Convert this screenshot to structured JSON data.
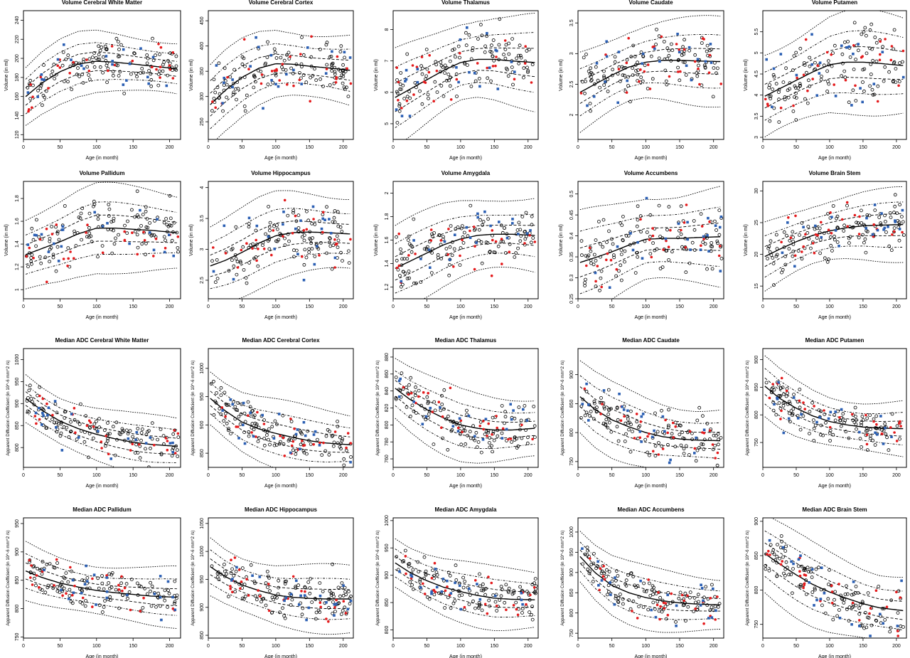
{
  "figure": {
    "background": "#ffffff",
    "colors": {
      "fit": "#000000",
      "healthy": "#000000",
      "red_points": "#e41a1c",
      "blue_points": "#2b5fb3"
    }
  },
  "chart_data": [
    {
      "type": "scatter",
      "title": "Volume Cerebral White Matter",
      "xlabel": "Age (in month)",
      "ylabel": "Volume (in ml)",
      "xlim": [
        0,
        215
      ],
      "ylim": [
        115,
        250
      ],
      "xticks": [
        0,
        50,
        100,
        150,
        200
      ],
      "yticks": [
        120,
        140,
        160,
        180,
        200,
        220,
        240
      ],
      "fit": {
        "x": [
          0,
          25,
          50,
          75,
          100,
          125,
          150,
          175,
          210
        ],
        "y": [
          158,
          174,
          186,
          194,
          197,
          196,
          194,
          192,
          189
        ]
      },
      "spread": [
        30,
        18,
        9,
        -9,
        -18,
        -30
      ]
    },
    {
      "type": "scatter",
      "title": "Volume Cerebral Cortex",
      "xlabel": "Age (in month)",
      "ylabel": "Volume (in ml)",
      "xlim": [
        0,
        215
      ],
      "ylim": [
        215,
        470
      ],
      "xticks": [
        0,
        50,
        100,
        150,
        200
      ],
      "yticks": [
        250,
        300,
        350,
        400,
        450
      ],
      "fit": {
        "x": [
          0,
          25,
          50,
          75,
          100,
          125,
          150,
          175,
          210
        ],
        "y": [
          280,
          312,
          338,
          356,
          365,
          364,
          360,
          357,
          352
        ]
      },
      "spread": [
        70,
        42,
        20,
        -20,
        -42,
        -70
      ]
    },
    {
      "type": "scatter",
      "title": "Volume Thalamus",
      "xlabel": "Age (in month)",
      "ylabel": "Volume (in ml)",
      "xlim": [
        0,
        215
      ],
      "ylim": [
        4.5,
        8.6
      ],
      "xticks": [
        0,
        50,
        100,
        150,
        200
      ],
      "yticks": [
        5,
        6,
        7,
        8
      ],
      "fit": {
        "x": [
          0,
          25,
          50,
          75,
          100,
          125,
          150,
          175,
          210
        ],
        "y": [
          5.8,
          6.1,
          6.4,
          6.7,
          6.95,
          7.05,
          7.05,
          7.0,
          6.95
        ]
      },
      "spread": [
        1.4,
        0.85,
        0.4,
        -0.4,
        -0.85,
        -1.4
      ]
    },
    {
      "type": "scatter",
      "title": "Volume Caudate",
      "xlabel": "Age (in month)",
      "ylabel": "Volume (in ml)",
      "xlim": [
        0,
        215
      ],
      "ylim": [
        1.6,
        3.7
      ],
      "xticks": [
        0,
        50,
        100,
        150,
        200
      ],
      "yticks": [
        2.0,
        2.5,
        3.0,
        3.5
      ],
      "fit": {
        "x": [
          0,
          25,
          50,
          75,
          100,
          125,
          150,
          175,
          210
        ],
        "y": [
          2.35,
          2.5,
          2.65,
          2.78,
          2.86,
          2.89,
          2.89,
          2.88,
          2.87
        ]
      },
      "spread": [
        0.65,
        0.38,
        0.18,
        -0.18,
        -0.38,
        -0.65
      ]
    },
    {
      "type": "scatter",
      "title": "Volume Putamen",
      "xlabel": "Age (in month)",
      "ylabel": "Volume (in ml)",
      "xlim": [
        0,
        215
      ],
      "ylim": [
        2.95,
        6.0
      ],
      "xticks": [
        0,
        50,
        100,
        150,
        200
      ],
      "yticks": [
        3.0,
        3.5,
        4.0,
        4.5,
        5.0,
        5.5
      ],
      "fit": {
        "x": [
          0,
          25,
          50,
          75,
          100,
          125,
          150,
          175,
          210
        ],
        "y": [
          3.95,
          4.15,
          4.35,
          4.55,
          4.72,
          4.78,
          4.78,
          4.75,
          4.7
        ]
      },
      "spread": [
        1.1,
        0.65,
        0.32,
        -0.32,
        -0.65,
        -1.1
      ]
    },
    {
      "type": "scatter",
      "title": "Volume Pallidum",
      "xlabel": "Age (in month)",
      "ylabel": "Volume (in ml)",
      "xlim": [
        0,
        215
      ],
      "ylim": [
        0.92,
        1.95
      ],
      "xticks": [
        0,
        50,
        100,
        150,
        200
      ],
      "yticks": [
        1.0,
        1.2,
        1.4,
        1.6,
        1.8
      ],
      "fit": {
        "x": [
          0,
          25,
          50,
          75,
          100,
          125,
          150,
          175,
          210
        ],
        "y": [
          1.3,
          1.36,
          1.42,
          1.49,
          1.54,
          1.54,
          1.53,
          1.52,
          1.5
        ]
      },
      "spread": [
        0.35,
        0.2,
        0.1,
        -0.1,
        -0.2,
        -0.35
      ]
    },
    {
      "type": "scatter",
      "title": "Volume Hippocampus",
      "xlabel": "Age (in month)",
      "ylabel": "Volume (in ml)",
      "xlim": [
        0,
        215
      ],
      "ylim": [
        2.2,
        4.1
      ],
      "xticks": [
        0,
        50,
        100,
        150,
        200
      ],
      "yticks": [
        2.5,
        3.0,
        3.5,
        4.0
      ],
      "fit": {
        "x": [
          0,
          25,
          50,
          75,
          100,
          125,
          150,
          175,
          210
        ],
        "y": [
          2.72,
          2.82,
          2.95,
          3.1,
          3.22,
          3.27,
          3.28,
          3.27,
          3.25
        ]
      },
      "spread": [
        0.65,
        0.38,
        0.18,
        -0.18,
        -0.38,
        -0.65
      ]
    },
    {
      "type": "scatter",
      "title": "Volume Amygdala",
      "xlabel": "Age (in month)",
      "ylabel": "Volume (in ml)",
      "xlim": [
        0,
        215
      ],
      "ylim": [
        1.1,
        2.1
      ],
      "xticks": [
        0,
        50,
        100,
        150,
        200
      ],
      "yticks": [
        1.2,
        1.4,
        1.6,
        1.8,
        2.0
      ],
      "fit": {
        "x": [
          0,
          25,
          50,
          75,
          100,
          125,
          150,
          175,
          210
        ],
        "y": [
          1.35,
          1.42,
          1.49,
          1.56,
          1.61,
          1.64,
          1.65,
          1.65,
          1.64
        ]
      },
      "spread": [
        0.33,
        0.19,
        0.09,
        -0.09,
        -0.19,
        -0.33
      ]
    },
    {
      "type": "scatter",
      "title": "Volume Accumbens",
      "xlabel": "Age (in month)",
      "ylabel": "Volume (in ml)",
      "xlim": [
        0,
        215
      ],
      "ylim": [
        0.25,
        0.53
      ],
      "xticks": [
        0,
        50,
        100,
        150,
        200
      ],
      "yticks": [
        0.25,
        0.3,
        0.35,
        0.4,
        0.45,
        0.5
      ],
      "fit": {
        "x": [
          0,
          25,
          50,
          75,
          100,
          125,
          150,
          175,
          210
        ],
        "y": [
          0.335,
          0.348,
          0.362,
          0.378,
          0.392,
          0.394,
          0.394,
          0.396,
          0.398
        ]
      },
      "spread": [
        0.11,
        0.065,
        0.03,
        -0.03,
        -0.065,
        -0.11
      ]
    },
    {
      "type": "scatter",
      "title": "Volume Brain Stem",
      "xlabel": "Age (in month)",
      "ylabel": "Volume (in ml)",
      "xlim": [
        0,
        215
      ],
      "ylim": [
        13,
        31.5
      ],
      "xticks": [
        0,
        50,
        100,
        150,
        200
      ],
      "yticks": [
        15,
        20,
        25,
        30
      ],
      "fit": {
        "x": [
          0,
          25,
          50,
          75,
          100,
          125,
          150,
          175,
          210
        ],
        "y": [
          19.5,
          20.8,
          22.0,
          23.0,
          23.7,
          24.2,
          24.5,
          24.6,
          24.7
        ]
      },
      "spread": [
        5.2,
        3.1,
        1.5,
        -1.5,
        -3.1,
        -5.2
      ]
    },
    {
      "type": "scatter",
      "title": "Median ADC Cerebral White Matter",
      "xlabel": "Age (in month)",
      "ylabel": "Apparent Diffusion Coefficient (in 10^-6 mm^2 /s)",
      "xlim": [
        0,
        215
      ],
      "ylim": [
        755,
        1025
      ],
      "xticks": [
        0,
        50,
        100,
        150,
        200
      ],
      "yticks": [
        800,
        850,
        900,
        950,
        1000
      ],
      "fit": {
        "x": [
          0,
          25,
          50,
          75,
          100,
          125,
          150,
          175,
          210
        ],
        "y": [
          915,
          885,
          860,
          843,
          830,
          820,
          812,
          807,
          803
        ]
      },
      "spread": [
        60,
        35,
        17,
        -17,
        -35,
        -60
      ]
    },
    {
      "type": "scatter",
      "title": "Median ADC Cerebral Cortex",
      "xlabel": "Age (in month)",
      "ylabel": "Apparent Diffusion Coefficient (in 10^-6 mm^2 /s)",
      "xlim": [
        0,
        215
      ],
      "ylim": [
        825,
        1035
      ],
      "xticks": [
        0,
        50,
        100,
        150,
        200
      ],
      "yticks": [
        850,
        900,
        950,
        1000
      ],
      "fit": {
        "x": [
          0,
          25,
          50,
          75,
          100,
          125,
          150,
          175,
          210
        ],
        "y": [
          950,
          925,
          905,
          893,
          885,
          878,
          872,
          868,
          865
        ]
      },
      "spread": [
        55,
        32,
        15,
        -15,
        -32,
        -55
      ]
    },
    {
      "type": "scatter",
      "title": "Median ADC Thalamus",
      "xlabel": "Age (in month)",
      "ylabel": "Apparent Diffusion Coefficient (in 10^-6 mm^2 /s)",
      "xlim": [
        0,
        215
      ],
      "ylim": [
        750,
        890
      ],
      "xticks": [
        0,
        50,
        100,
        150,
        200
      ],
      "yticks": [
        760,
        780,
        800,
        820,
        840,
        860,
        880
      ],
      "fit": {
        "x": [
          0,
          25,
          50,
          75,
          100,
          125,
          150,
          175,
          210
        ],
        "y": [
          845,
          830,
          818,
          808,
          800,
          796,
          794,
          794,
          796
        ]
      },
      "spread": [
        38,
        22,
        10,
        -10,
        -22,
        -38
      ]
    },
    {
      "type": "scatter",
      "title": "Median ADC Caudate",
      "xlabel": "Age (in month)",
      "ylabel": "Apparent Diffusion Coefficient (in 10^-6 mm^2 /s)",
      "xlim": [
        0,
        215
      ],
      "ylim": [
        740,
        945
      ],
      "xticks": [
        0,
        50,
        100,
        150,
        200
      ],
      "yticks": [
        750,
        800,
        850,
        900
      ],
      "fit": {
        "x": [
          0,
          25,
          50,
          75,
          100,
          125,
          150,
          175,
          210
        ],
        "y": [
          865,
          840,
          822,
          810,
          800,
          793,
          789,
          787,
          786
        ]
      },
      "spread": [
        58,
        34,
        16,
        -16,
        -34,
        -58
      ]
    },
    {
      "type": "scatter",
      "title": "Median ADC Putamen",
      "xlabel": "Age (in month)",
      "ylabel": "Apparent Diffusion Coefficient (in 10^-6 mm^2 /s)",
      "xlim": [
        0,
        215
      ],
      "ylim": [
        705,
        920
      ],
      "xticks": [
        0,
        50,
        100,
        150,
        200
      ],
      "yticks": [
        750,
        800,
        850,
        900
      ],
      "fit": {
        "x": [
          0,
          25,
          50,
          75,
          100,
          125,
          150,
          175,
          210
        ],
        "y": [
          855,
          830,
          812,
          798,
          788,
          782,
          778,
          776,
          775
        ]
      },
      "spread": [
        48,
        28,
        13,
        -13,
        -28,
        -48
      ]
    },
    {
      "type": "scatter",
      "title": "Median ADC Pallidum",
      "xlabel": "Age (in month)",
      "ylabel": "Apparent Diffusion Coefficient (in 10^-6 mm^2 /s)",
      "xlim": [
        0,
        215
      ],
      "ylim": [
        748,
        960
      ],
      "xticks": [
        0,
        50,
        100,
        150,
        200
      ],
      "yticks": [
        750,
        800,
        850,
        900,
        950
      ],
      "fit": {
        "x": [
          0,
          25,
          50,
          75,
          100,
          125,
          150,
          175,
          210
        ],
        "y": [
          868,
          855,
          845,
          838,
          832,
          828,
          825,
          822,
          820
        ]
      },
      "spread": [
        48,
        28,
        13,
        -13,
        -28,
        -48
      ]
    },
    {
      "type": "scatter",
      "title": "Median ADC Hippocampus",
      "xlabel": "Age (in month)",
      "ylabel": "Apparent Diffusion Coefficient (in 10^-6 mm^2 /s)",
      "xlim": [
        0,
        215
      ],
      "ylim": [
        845,
        1060
      ],
      "xticks": [
        0,
        50,
        100,
        150,
        200
      ],
      "yticks": [
        850,
        900,
        950,
        1000,
        1050
      ],
      "fit": {
        "x": [
          0,
          25,
          50,
          75,
          100,
          125,
          150,
          175,
          210
        ],
        "y": [
          975,
          955,
          940,
          930,
          922,
          918,
          916,
          915,
          915
        ]
      },
      "spread": [
        55,
        32,
        15,
        -15,
        -32,
        -55
      ]
    },
    {
      "type": "scatter",
      "title": "Median ADC Amygdala",
      "xlabel": "Age (in month)",
      "ylabel": "Apparent Diffusion Coefficient (in 10^-6 mm^2 /s)",
      "xlim": [
        0,
        215
      ],
      "ylim": [
        785,
        1005
      ],
      "xticks": [
        0,
        50,
        100,
        150,
        200
      ],
      "yticks": [
        800,
        850,
        900,
        950,
        1000
      ],
      "fit": {
        "x": [
          0,
          25,
          50,
          75,
          100,
          125,
          150,
          175,
          210
        ],
        "y": [
          925,
          905,
          890,
          878,
          870,
          863,
          858,
          856,
          855
        ]
      },
      "spread": [
        52,
        30,
        14,
        -14,
        -30,
        -52
      ]
    },
    {
      "type": "scatter",
      "title": "Median ADC Accumbens",
      "xlabel": "Age (in month)",
      "ylabel": "Apparent Diffusion Coefficient (in 10^-6 mm^2 /s)",
      "xlim": [
        0,
        215
      ],
      "ylim": [
        738,
        1035
      ],
      "xticks": [
        0,
        50,
        100,
        150,
        200
      ],
      "yticks": [
        750,
        800,
        850,
        900,
        950,
        1000
      ],
      "fit": {
        "x": [
          0,
          25,
          50,
          75,
          100,
          125,
          150,
          175,
          210
        ],
        "y": [
          945,
          900,
          868,
          850,
          838,
          830,
          825,
          822,
          820
        ]
      },
      "spread": [
        70,
        40,
        18,
        -18,
        -40,
        -70
      ]
    },
    {
      "type": "scatter",
      "title": "Median ADC Brain Stem",
      "xlabel": "Age (in month)",
      "ylabel": "Apparent Diffusion Coefficient (in 10^-6 mm^2 /s)",
      "xlim": [
        0,
        215
      ],
      "ylim": [
        730,
        905
      ],
      "xticks": [
        0,
        50,
        100,
        150,
        200
      ],
      "yticks": [
        750,
        800,
        850,
        900
      ],
      "fit": {
        "x": [
          0,
          25,
          50,
          75,
          100,
          125,
          150,
          175,
          210
        ],
        "y": [
          855,
          838,
          822,
          808,
          797,
          788,
          780,
          774,
          770
        ]
      },
      "spread": [
        55,
        32,
        15,
        -15,
        -32,
        -55
      ]
    }
  ]
}
